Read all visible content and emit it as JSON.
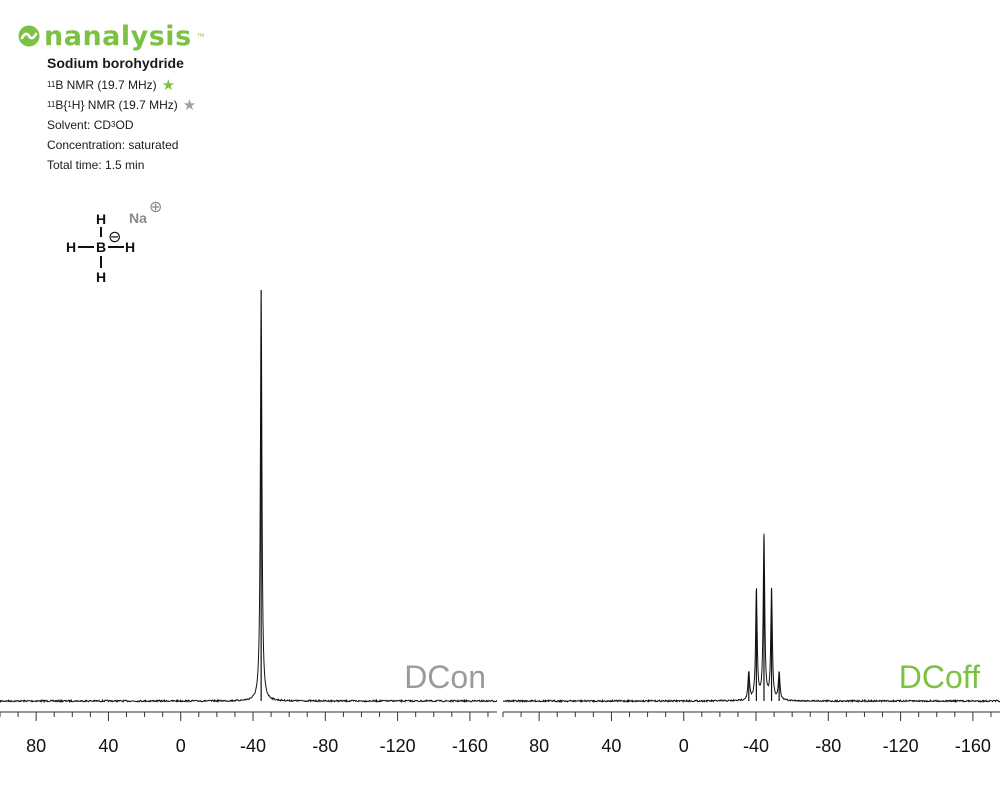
{
  "brand": {
    "name": "nanalysis",
    "tm": "™",
    "color": "#7dc142"
  },
  "sample": {
    "title": "Sodium borohydride",
    "experiments": [
      {
        "prefix": "11",
        "label": "B NMR (19.7 MHz)",
        "star_color": "#7dc142",
        "star": "★"
      },
      {
        "prefix": "11",
        "label_a": "B{",
        "label_sup": "1",
        "label_b": "H} NMR (19.7 MHz)",
        "star_color": "#a0a0a0",
        "star": "★"
      }
    ],
    "solvent_prefix": "Solvent: CD",
    "solvent_sub": "3",
    "solvent_suffix": "OD",
    "concentration": "Concentration: saturated",
    "total_time": "Total time: 1.5 min"
  },
  "structure": {
    "atoms": {
      "H": "H",
      "B": "B",
      "Na": "Na",
      "anion": "⊖",
      "cation": "⊕"
    }
  },
  "chart_data": [
    {
      "type": "line",
      "title": "",
      "corner_label": "DCon",
      "corner_label_color": "#9b9b9b",
      "xlabel": "",
      "ylabel": "",
      "x_reversed": true,
      "xlim": [
        100,
        -175
      ],
      "x_ticks": [
        80,
        40,
        0,
        -40,
        -80,
        -120,
        -160
      ],
      "x_tick_labels": [
        "80",
        "40",
        "0",
        "-40",
        "-80",
        "-120",
        "-160"
      ],
      "grid": false,
      "peaks": [
        {
          "shift": -44.5,
          "height": 1.0,
          "multiplicity": "singlet"
        }
      ]
    },
    {
      "type": "line",
      "title": "",
      "corner_label": "DCoff",
      "corner_label_color": "#7dc142",
      "xlabel": "",
      "ylabel": "",
      "x_reversed": true,
      "xlim": [
        100,
        -175
      ],
      "x_ticks": [
        80,
        40,
        0,
        -40,
        -80,
        -120,
        -160
      ],
      "x_tick_labels": [
        "80",
        "40",
        "0",
        "-40",
        "-80",
        "-120",
        "-160"
      ],
      "grid": false,
      "peaks": [
        {
          "shift": -36.0,
          "height": 0.07,
          "multiplicity": "quintet line 1"
        },
        {
          "shift": -40.2,
          "height": 0.27,
          "multiplicity": "quintet line 2"
        },
        {
          "shift": -44.4,
          "height": 0.4,
          "multiplicity": "quintet line 3"
        },
        {
          "shift": -48.6,
          "height": 0.27,
          "multiplicity": "quintet line 4"
        },
        {
          "shift": -52.8,
          "height": 0.07,
          "multiplicity": "quintet line 5"
        }
      ]
    }
  ]
}
